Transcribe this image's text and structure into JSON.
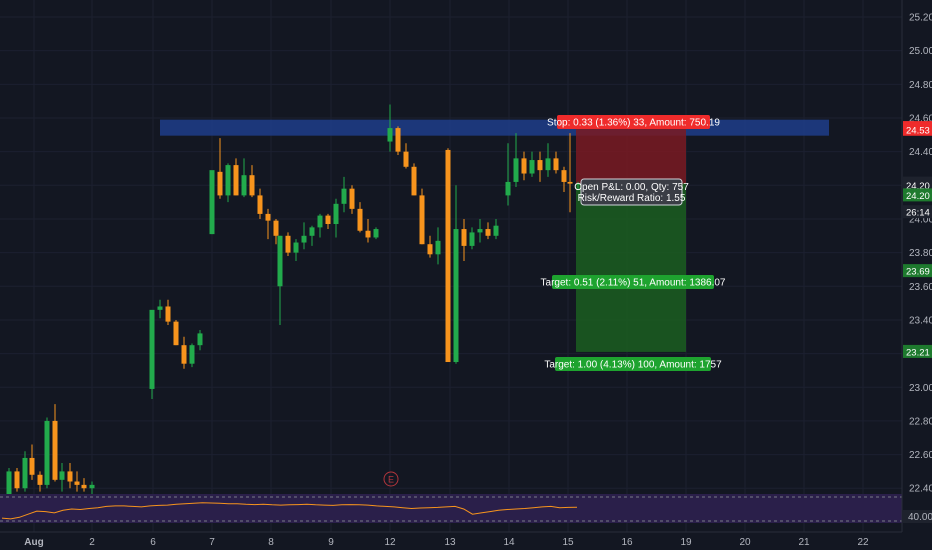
{
  "chart_data": {
    "type": "candlestick",
    "y_range": [
      22.3,
      25.3
    ],
    "y_ticks": [
      "25.20",
      "25.00",
      "24.80",
      "24.60",
      "24.40",
      "24.20",
      "24.00",
      "23.80",
      "23.60",
      "23.40",
      "23.20",
      "23.00",
      "22.80",
      "22.60",
      "22.40"
    ],
    "x_ticks": [
      "Aug",
      "2",
      "6",
      "7",
      "8",
      "9",
      "12",
      "13",
      "14",
      "15",
      "16",
      "19",
      "20",
      "21",
      "22"
    ],
    "candles": [
      [
        22.35,
        22.52,
        22.3,
        22.5
      ],
      [
        22.5,
        22.52,
        22.38,
        22.4
      ],
      [
        22.4,
        22.62,
        22.38,
        22.58
      ],
      [
        22.58,
        22.66,
        22.45,
        22.48
      ],
      [
        22.48,
        22.5,
        22.38,
        22.42
      ],
      [
        22.42,
        22.82,
        22.4,
        22.8
      ],
      [
        22.8,
        22.9,
        22.44,
        22.45
      ],
      [
        22.45,
        22.55,
        22.38,
        22.5
      ],
      [
        22.5,
        22.55,
        22.4,
        22.44
      ],
      [
        22.44,
        22.5,
        22.38,
        22.42
      ],
      [
        22.42,
        22.46,
        22.38,
        22.4
      ],
      [
        22.4,
        22.44,
        22.36,
        22.42
      ],
      [
        22.99,
        23.45,
        22.93,
        23.46
      ],
      [
        23.46,
        23.52,
        23.41,
        23.48
      ],
      [
        23.48,
        23.52,
        23.37,
        23.39
      ],
      [
        23.39,
        23.4,
        23.25,
        23.25
      ],
      [
        23.25,
        23.3,
        23.11,
        23.14
      ],
      [
        23.14,
        23.26,
        23.12,
        23.25
      ],
      [
        23.25,
        23.34,
        23.22,
        23.32
      ],
      [
        23.91,
        24.28,
        23.91,
        24.29
      ],
      [
        24.28,
        24.48,
        24.12,
        24.14
      ],
      [
        24.14,
        24.33,
        24.1,
        24.32
      ],
      [
        24.32,
        24.36,
        24.14,
        24.14
      ],
      [
        24.14,
        24.36,
        24.13,
        24.26
      ],
      [
        24.26,
        24.32,
        24.13,
        24.14
      ],
      [
        24.14,
        24.18,
        24.0,
        24.03
      ],
      [
        24.03,
        24.06,
        23.88,
        23.99
      ],
      [
        23.99,
        24.0,
        23.85,
        23.9
      ],
      [
        23.6,
        23.9,
        23.37,
        23.9
      ],
      [
        23.9,
        23.92,
        23.78,
        23.8
      ],
      [
        23.8,
        23.88,
        23.75,
        23.86
      ],
      [
        23.86,
        23.98,
        23.82,
        23.9
      ],
      [
        23.9,
        23.96,
        23.84,
        23.95
      ],
      [
        23.95,
        24.03,
        23.89,
        24.02
      ],
      [
        24.02,
        24.03,
        23.94,
        23.97
      ],
      [
        23.97,
        24.12,
        23.89,
        24.09
      ],
      [
        24.09,
        24.25,
        24.04,
        24.18
      ],
      [
        24.18,
        24.2,
        24.03,
        24.06
      ],
      [
        24.06,
        24.1,
        23.92,
        23.93
      ],
      [
        23.93,
        24.0,
        23.86,
        23.89
      ],
      [
        23.89,
        23.95,
        23.88,
        23.94
      ],
      [
        24.46,
        24.68,
        24.4,
        24.54
      ],
      [
        24.54,
        24.55,
        24.38,
        24.4
      ],
      [
        24.4,
        24.45,
        24.3,
        24.31
      ],
      [
        24.31,
        24.33,
        24.14,
        24.14
      ],
      [
        24.14,
        24.18,
        23.85,
        23.85
      ],
      [
        23.85,
        23.9,
        23.77,
        23.79
      ],
      [
        23.79,
        23.95,
        23.73,
        23.87
      ],
      [
        24.41,
        24.42,
        23.15,
        23.15
      ],
      [
        23.15,
        24.2,
        23.14,
        23.94
      ],
      [
        23.94,
        24.0,
        23.75,
        23.84
      ],
      [
        23.84,
        23.95,
        23.82,
        23.92
      ],
      [
        23.92,
        24.0,
        23.86,
        23.94
      ],
      [
        23.94,
        23.98,
        23.88,
        23.9
      ],
      [
        23.9,
        24.0,
        23.88,
        23.96
      ],
      [
        24.14,
        24.45,
        24.08,
        24.22
      ],
      [
        24.22,
        24.51,
        24.19,
        24.36
      ],
      [
        24.36,
        24.4,
        24.23,
        24.27
      ],
      [
        24.27,
        24.4,
        24.25,
        24.35
      ],
      [
        24.35,
        24.4,
        24.22,
        24.29
      ],
      [
        24.29,
        24.45,
        24.25,
        24.36
      ],
      [
        24.36,
        24.4,
        24.27,
        24.29
      ],
      [
        24.29,
        24.31,
        24.16,
        24.22
      ],
      [
        24.22,
        24.51,
        24.04,
        24.21
      ],
      [
        24.21,
        24.22,
        24.17,
        24.21
      ]
    ],
    "resistance_zone": [
      24.495,
      24.59
    ],
    "position": {
      "entry": 24.21,
      "stop": 24.54,
      "target": 23.21,
      "mid_target": 23.69,
      "stop_label": "Stop: 0.33 (1.36%) 33, Amount: 750.19",
      "target1_label": "Target: 0.51 (2.11%) 51, Amount: 1386.07",
      "target2_label": "Target: 1.00 (4.13%) 100, Amount: 1757",
      "info_line1": "Open P&L: 0.00, Qty: 757",
      "info_line2": "Risk/Reward Ratio: 1.55"
    },
    "price_tags": [
      {
        "label": "24.54",
        "value": 24.54,
        "color": "#ef2b2b"
      },
      {
        "label": "24.53",
        "value": 24.53,
        "color": "#ef2b2b"
      },
      {
        "label": "24.21",
        "value": 24.21,
        "color": "#1e222d"
      },
      {
        "label": "24.20",
        "value": 24.2,
        "color": "#1e222d"
      },
      {
        "label": "24.20",
        "value": 24.14,
        "color": "#1e7a2e"
      },
      {
        "label": "26:14",
        "value": 24.04,
        "color": "#1e222d"
      },
      {
        "label": "23.69",
        "value": 23.69,
        "color": "#1e7a2e"
      },
      {
        "label": "23.21",
        "value": 23.21,
        "color": "#1e7a2e"
      }
    ],
    "earnings_marker": "E",
    "rsi": {
      "level_label": "40.00",
      "values": [
        0.15,
        0.12,
        0.18,
        0.3,
        0.42,
        0.4,
        0.35,
        0.45,
        0.5,
        0.48,
        0.52,
        0.55,
        0.6,
        0.62,
        0.62,
        0.6,
        0.58,
        0.62,
        0.64,
        0.65,
        0.68,
        0.7,
        0.72,
        0.74,
        0.73,
        0.72,
        0.7,
        0.7,
        0.68,
        0.67,
        0.68,
        0.66,
        0.65,
        0.66,
        0.67,
        0.68,
        0.66,
        0.65,
        0.64,
        0.66,
        0.67,
        0.66,
        0.65,
        0.62,
        0.6,
        0.58,
        0.55,
        0.52,
        0.54,
        0.55,
        0.56,
        0.58,
        0.6,
        0.5,
        0.3,
        0.35,
        0.4,
        0.45,
        0.48,
        0.5,
        0.52,
        0.55,
        0.58,
        0.6,
        0.55,
        0.56,
        0.57
      ]
    },
    "colors": {
      "up": "#26a69a",
      "down": "#f7941d",
      "bull": "#22ab4c",
      "zone": "#1f3d8a",
      "stop_zone": "#7a1a22",
      "target_zone": "#1b5e20",
      "rsi_bg": "#2a1f4a",
      "rsi_line": "#f7941d"
    }
  }
}
